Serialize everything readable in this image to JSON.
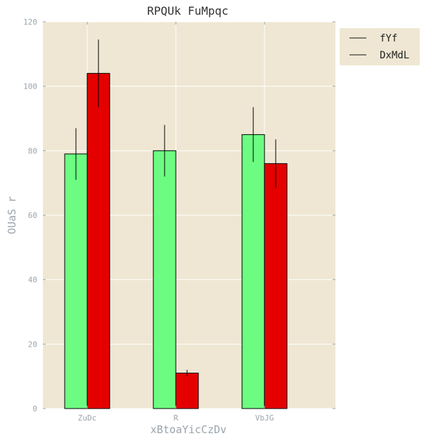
{
  "chart_data": {
    "type": "bar",
    "title": "RPQUk FuMpqc",
    "xlabel": "xBtoaYicCzDv",
    "ylabel": "OUaS r",
    "categories": [
      "ZuDc",
      "R",
      "VbJG"
    ],
    "series": [
      {
        "name": "fYf",
        "color": "#6dfc82",
        "values": [
          79,
          80,
          85
        ],
        "errors": [
          8,
          8,
          8.5
        ]
      },
      {
        "name": "DxMdL",
        "color": "#e50000",
        "values": [
          104,
          11,
          76
        ],
        "errors": [
          10.5,
          1,
          7.5
        ]
      }
    ],
    "ylim": [
      0,
      120
    ],
    "yticks": [
      0,
      20,
      40,
      60,
      80,
      100,
      120
    ],
    "grid": true,
    "legend_position": "outside-top-right",
    "plot_background": "#efe7d3"
  }
}
